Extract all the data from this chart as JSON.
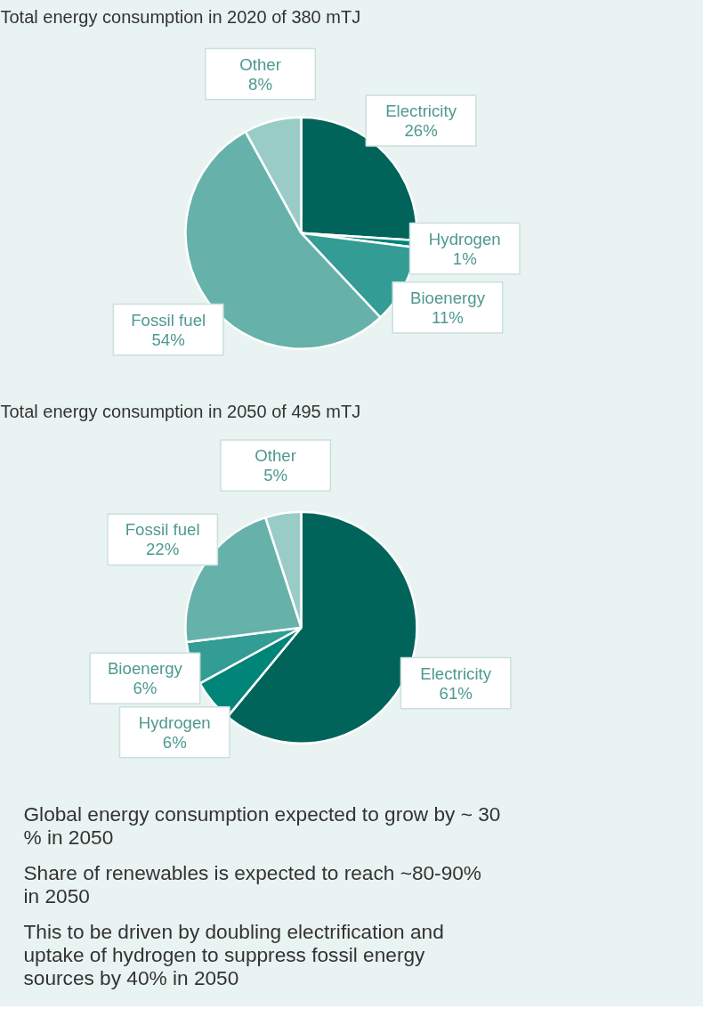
{
  "chart_data": [
    {
      "type": "pie",
      "title": "Total energy consumption in 2020 of 380 mTJ",
      "categories": [
        "Electricity",
        "Hydrogen",
        "Bioenergy",
        "Fossil fuel",
        "Other"
      ],
      "values": [
        26,
        1,
        11,
        54,
        8
      ],
      "value_labels": [
        "26%",
        "1%",
        "11%",
        "54%",
        "8%"
      ],
      "colors": [
        "#00645a",
        "#008578",
        "#339c94",
        "#66b2ab",
        "#99ccc6"
      ]
    },
    {
      "type": "pie",
      "title": "Total energy consumption in 2050 of 495 mTJ",
      "categories": [
        "Electricity",
        "Hydrogen",
        "Bioenergy",
        "Fossil fuel",
        "Other"
      ],
      "values": [
        61,
        6,
        6,
        22,
        5
      ],
      "value_labels": [
        "61%",
        "6%",
        "6%",
        "22%",
        "5%"
      ],
      "colors": [
        "#00645a",
        "#008578",
        "#339c94",
        "#66b2ab",
        "#99ccc6"
      ]
    },
    {
      "type": "other",
      "annotations": [
        "Global energy consumption expected to grow by ~ 30 % in 2050",
        "Share of renewables is expected to reach ~80-90% in 2050",
        "This to be driven by doubling electrification and uptake of hydrogen to suppress fossil energy sources by 40% in 2050"
      ]
    }
  ]
}
